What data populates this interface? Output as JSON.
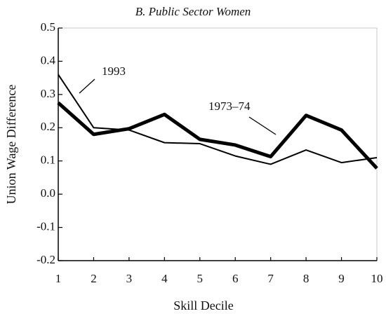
{
  "chart_data": {
    "type": "line",
    "title": "B. Public Sector Women",
    "x_label": "Skill Decile",
    "y_label": "Union Wage Difference",
    "x": [
      1,
      2,
      3,
      4,
      5,
      6,
      7,
      8,
      9,
      10
    ],
    "series": [
      {
        "name": "1973–74",
        "color": "#000000",
        "width": 5,
        "values": [
          0.275,
          0.18,
          0.197,
          0.24,
          0.165,
          0.148,
          0.113,
          0.237,
          0.193,
          0.078
        ]
      },
      {
        "name": "1993",
        "color": "#000000",
        "width": 2,
        "values": [
          0.36,
          0.2,
          0.193,
          0.155,
          0.152,
          0.115,
          0.09,
          0.133,
          0.095,
          0.11
        ]
      }
    ],
    "xlim": [
      1,
      10
    ],
    "xticks": [
      1,
      2,
      3,
      4,
      5,
      6,
      7,
      8,
      9,
      10
    ],
    "ylim": [
      -0.2,
      0.5
    ],
    "yticks": [
      0.5,
      0.4,
      0.3,
      0.2,
      0.1,
      {
        "value": 0,
        "label": "0.0"
      },
      -0.1,
      -0.2
    ]
  }
}
